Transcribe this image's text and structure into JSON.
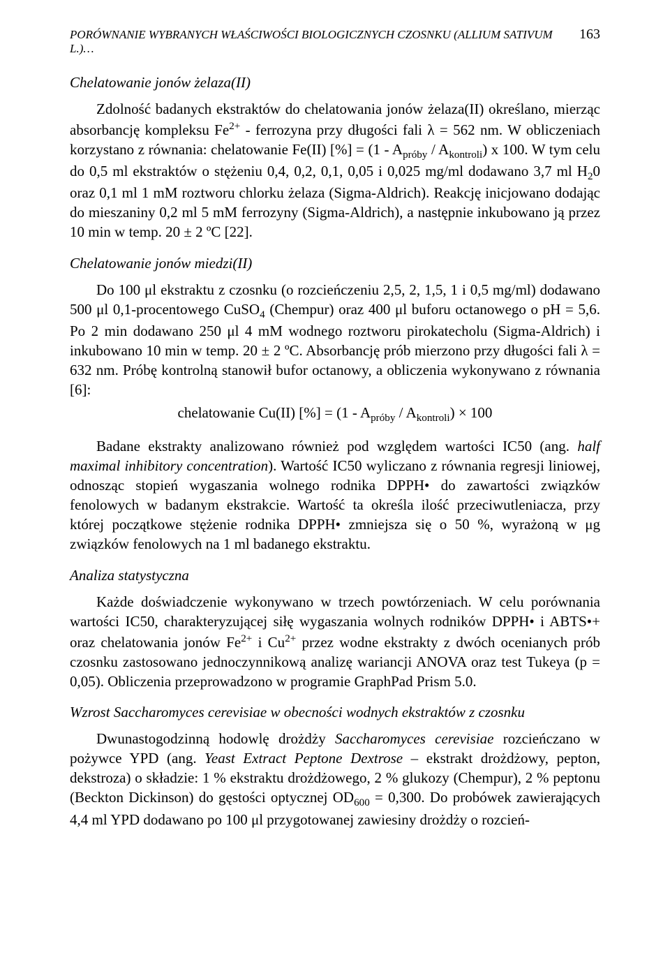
{
  "header": {
    "running_title": "PORÓWNANIE WYBRANYCH WŁAŚCIWOŚCI BIOLOGICZNYCH CZOSNKU (ALLIUM SATIVUM L.)…",
    "page_number": "163"
  },
  "sections": {
    "s1": {
      "title": "Chelatowanie jonów żelaza(II)",
      "para": "Zdolność badanych ekstraktów do chelatowania jonów żelaza(II) określano, mierząc absorbancję kompleksu Fe²⁺ - ferrozyna przy długości fali λ = 562 nm. W obliczeniach korzystano z równania: chelatowanie Fe(II) [%] = (1 - Apróby / Akontroli) x 100. W tym celu do 0,5 ml ekstraktów o stężeniu 0,4, 0,2, 0,1, 0,05 i 0,025 mg/ml dodawano 3,7 ml H₂0 oraz 0,1 ml 1 mM roztworu chlorku żelaza (Sigma-Aldrich). Reakcję inicjowano dodając do mieszaniny 0,2 ml 5 mM ferrozyny (Sigma-Aldrich), a następnie inkubowano ją przez 10 min w temp. 20 ± 2 ºC [22]."
    },
    "s2": {
      "title": "Chelatowanie jonów miedzi(II)",
      "para1": "Do 100 μl ekstraktu z czosnku (o rozcieńczeniu 2,5, 2, 1,5, 1 i 0,5 mg/ml) dodawano 500 μl 0,1-procentowego CuSO₄ (Chempur) oraz 400 μl buforu octanowego o pH = 5,6. Po 2 min dodawano 250 μl 4 mM wodnego roztworu pirokatecholu (Sigma-Aldrich) i inkubowano 10 min w temp. 20 ± 2 ºC. Absorbancję prób mierzono przy długości fali λ = 632 nm. Próbę kontrolną stanowił bufor octanowy, a obliczenia wykonywano z równania [6]:",
      "formula": "chelatowanie Cu(II) [%] = (1 - Apróby / Akontroli) × 100",
      "para2_html": "Badane ekstrakty analizowano również pod względem wartości IC50 (ang. <span class=\"ital\">half maximal inhibitory concentration</span>). Wartość IC50 wyliczano z równania regresji liniowej, odnosząc stopień wygaszania wolnego rodnika DPPH• do zawartości związków fenolowych w badanym ekstrakcie. Wartość ta określa ilość przeciwutleniacza, przy której początkowe stężenie rodnika DPPH• zmniejsza się o 50 %, wyrażoną w μg związków fenolowych na 1 ml badanego ekstraktu."
    },
    "s3": {
      "title": "Analiza statystyczna",
      "para": "Każde doświadczenie wykonywano w trzech powtórzeniach. W celu porównania wartości IC50, charakteryzującej siłę wygaszania wolnych rodników DPPH• i ABTS•+ oraz chelatowania jonów Fe²⁺ i Cu²⁺ przez wodne ekstrakty z dwóch ocenianych prób czosnku zastosowano jednoczynnikową analizę wariancji ANOVA oraz test Tukeya (p = 0,05). Obliczenia przeprowadzono w programie GraphPad Prism 5.0."
    },
    "s4": {
      "title": "Wzrost Saccharomyces cerevisiae w obecności wodnych ekstraktów z czosnku",
      "para_html": "Dwunastogodzinną hodowlę drożdży <span class=\"ital\">Saccharomyces cerevisiae</span> rozcieńczano w pożywce YPD (ang. <span class=\"ital\">Yeast Extract Peptone Dextrose</span> – ekstrakt drożdżowy, pepton, dekstroza) o składzie: 1 % ekstraktu drożdżowego, 2 % glukozy (Chempur), 2 % peptonu (Beckton Dickinson) do gęstości optycznej OD₆₀₀ = 0,300. Do probówek zawierających 4,4 ml YPD dodawano po 100 μl przygotowanej zawiesiny drożdży o rozcień-"
    }
  }
}
